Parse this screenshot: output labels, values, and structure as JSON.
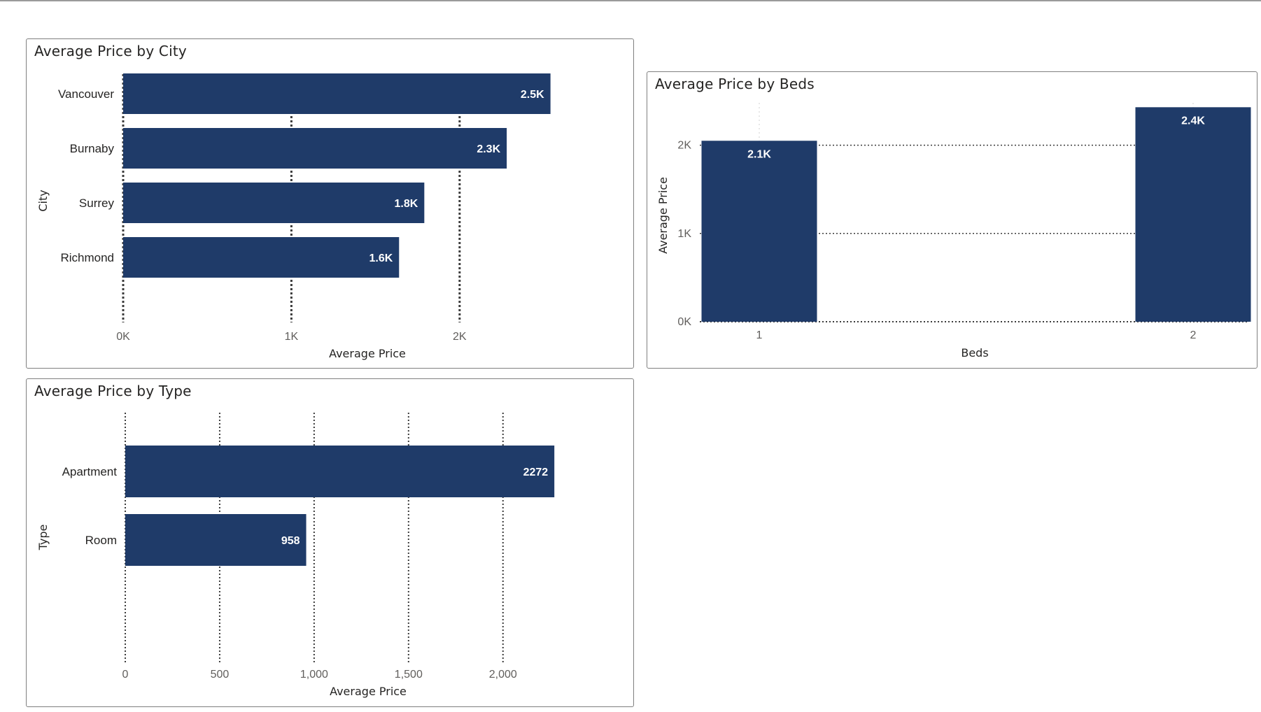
{
  "colors": {
    "bar": "#1f3b69",
    "grid": "#3c3c3c",
    "frame": "#7f7f7f"
  },
  "chart_data": [
    {
      "id": "city",
      "type": "bar",
      "orientation": "horizontal",
      "title": "Average Price by City",
      "xlabel": "Average Price",
      "ylabel": "City",
      "categories": [
        "Vancouver",
        "Burnaby",
        "Surrey",
        "Richmond"
      ],
      "values": [
        2540,
        2280,
        1790,
        1640
      ],
      "data_labels": [
        "2.5K",
        "2.3K",
        "1.8K",
        "1.6K"
      ],
      "xlim": [
        0,
        2920
      ],
      "ticks": [
        0,
        1000,
        2000
      ],
      "tick_labels": [
        "0K",
        "1K",
        "2K"
      ],
      "grid": true,
      "legend": "none"
    },
    {
      "id": "beds",
      "type": "bar",
      "orientation": "vertical",
      "title": "Average Price by Beds",
      "xlabel": "Beds",
      "ylabel": "Average Price",
      "categories": [
        "1",
        "2"
      ],
      "values": [
        2050,
        2430
      ],
      "data_labels": [
        "2.1K",
        "2.4K"
      ],
      "ylim": [
        0,
        2480
      ],
      "ticks": [
        0,
        1000,
        2000
      ],
      "tick_labels": [
        "0K",
        "1K",
        "2K"
      ],
      "grid": true,
      "legend": "none"
    },
    {
      "id": "type",
      "type": "bar",
      "orientation": "horizontal",
      "title": "Average Price by Type",
      "xlabel": "Average Price",
      "ylabel": "Type",
      "categories": [
        "Apartment",
        "Room"
      ],
      "values": [
        2272,
        958
      ],
      "data_labels": [
        "2272",
        "958"
      ],
      "xlim": [
        0,
        2590
      ],
      "ticks": [
        0,
        500,
        1000,
        1500,
        2000
      ],
      "tick_labels": [
        "0",
        "500",
        "1,000",
        "1,500",
        "2,000"
      ],
      "grid": true,
      "legend": "none"
    }
  ]
}
